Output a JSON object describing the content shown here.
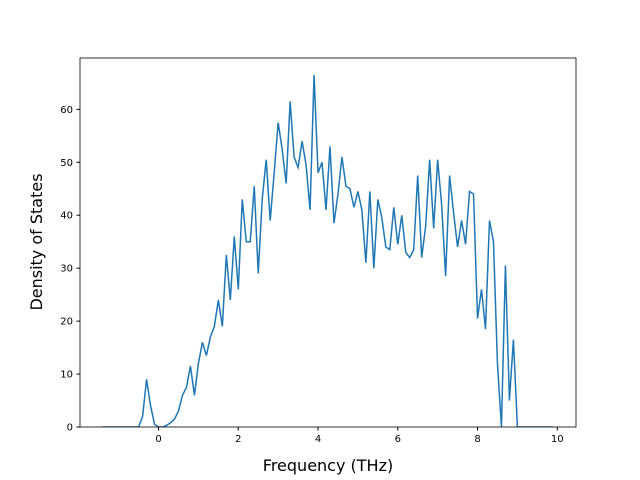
{
  "chart_data": {
    "type": "line",
    "xlabel": "Frequency (THz)",
    "ylabel": "Density of States",
    "color": "#1f77b4",
    "x": [
      -1.4,
      -1.3,
      -1.2,
      -1.1,
      -1.0,
      -0.9,
      -0.8,
      -0.7,
      -0.6,
      -0.5,
      -0.4,
      -0.3,
      -0.2,
      -0.1,
      0.0,
      0.1,
      0.2,
      0.3,
      0.4,
      0.5,
      0.6,
      0.7,
      0.8,
      0.9,
      1.0,
      1.1,
      1.2,
      1.3,
      1.4,
      1.5,
      1.6,
      1.7,
      1.8,
      1.9,
      2.0,
      2.1,
      2.2,
      2.3,
      2.4,
      2.5,
      2.6,
      2.7,
      2.8,
      2.9,
      3.0,
      3.1,
      3.2,
      3.3,
      3.4,
      3.5,
      3.6,
      3.7,
      3.8,
      3.9,
      4.0,
      4.1,
      4.2,
      4.3,
      4.4,
      4.5,
      4.6,
      4.7,
      4.8,
      4.9,
      5.0,
      5.1,
      5.2,
      5.3,
      5.4,
      5.5,
      5.6,
      5.7,
      5.8,
      5.9,
      6.0,
      6.1,
      6.2,
      6.3,
      6.4,
      6.5,
      6.6,
      6.7,
      6.8,
      6.9,
      7.0,
      7.1,
      7.2,
      7.3,
      7.4,
      7.5,
      7.6,
      7.7,
      7.8,
      7.9,
      8.0,
      8.1,
      8.2,
      8.3,
      8.4,
      8.5,
      8.6,
      8.7,
      8.8,
      8.9,
      9.0,
      9.1,
      9.2,
      9.3,
      9.4,
      9.5,
      9.6,
      9.7,
      9.8,
      9.9
    ],
    "values": [
      0,
      0,
      0,
      0,
      0,
      0,
      0,
      0,
      0,
      0,
      2,
      9,
      4,
      0.5,
      0,
      0,
      0.3,
      0.8,
      1.5,
      3,
      6,
      7.5,
      11.5,
      6,
      12,
      16,
      13.5,
      17,
      19,
      24,
      19,
      32.5,
      24,
      36,
      26,
      43,
      35,
      35,
      45.5,
      29,
      43,
      50.5,
      39,
      48,
      57.5,
      52.5,
      46,
      61.5,
      51,
      49,
      54,
      49.5,
      41,
      66.5,
      48,
      50,
      41,
      53,
      38.5,
      44,
      51,
      45.5,
      45,
      41.5,
      44.5,
      41,
      31,
      44.5,
      30,
      43,
      39.5,
      34,
      33.5,
      41.5,
      34.5,
      40,
      33,
      32,
      33.5,
      47.5,
      32,
      38,
      50.5,
      37.5,
      50.5,
      42,
      28.5,
      47.5,
      40.5,
      34,
      39,
      34.5,
      44.5,
      44,
      20.5,
      26,
      18.5,
      39,
      35,
      12,
      0,
      30.5,
      5,
      16.5,
      0,
      0,
      0,
      0,
      0,
      0,
      0,
      0,
      0,
      0
    ],
    "xlim": [
      -1.97,
      10.47
    ],
    "ylim": [
      0,
      69.7
    ],
    "xticks": [
      0,
      2,
      4,
      6,
      8,
      10
    ],
    "yticks": [
      0,
      10,
      20,
      30,
      40,
      50,
      60
    ]
  }
}
